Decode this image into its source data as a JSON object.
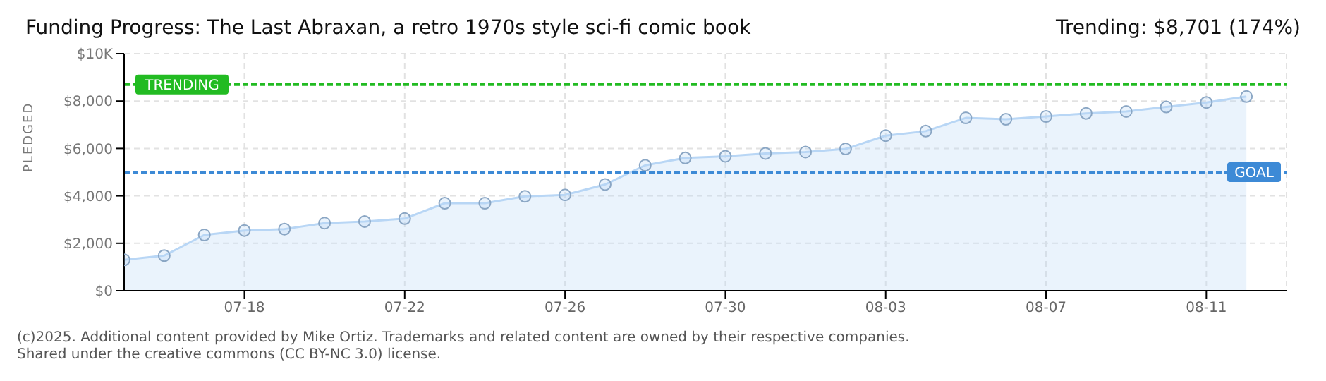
{
  "chart_data": {
    "type": "area",
    "title": "Funding Progress: The Last Abraxan, a retro 1970s style sci-fi comic book",
    "subtitle": "Trending: $8,701 (174%)",
    "ylabel": "PLEDGED",
    "x": [
      "--07-15",
      "--07-16",
      "--07-17",
      "--07-18",
      "--07-19",
      "--07-20",
      "--07-21",
      "--07-22",
      "--07-23",
      "--07-24",
      "--07-25",
      "--07-26",
      "--07-27",
      "--07-28",
      "--07-29",
      "--07-30",
      "--07-31",
      "--08-01",
      "--08-02",
      "--08-03",
      "--08-04",
      "--08-05",
      "--08-06",
      "--08-07",
      "--08-08",
      "--08-09",
      "--08-10",
      "--08-11",
      "--08-12"
    ],
    "series": [
      {
        "color": "#b8d6f5",
        "values": [
          1300,
          1480,
          2350,
          2540,
          2600,
          2850,
          2920,
          3040,
          3690,
          3690,
          3980,
          4040,
          4480,
          5290,
          5600,
          5670,
          5790,
          5850,
          5980,
          6540,
          6730,
          7290,
          7230,
          7350,
          7480,
          7560,
          7750,
          7940,
          8190
        ]
      }
    ],
    "xlim": [
      "--07-15",
      "--08-13"
    ],
    "xticks": [
      {
        "value": "--07-18",
        "label": "07-18"
      },
      {
        "value": "--07-22",
        "label": "07-22"
      },
      {
        "value": "--07-26",
        "label": "07-26"
      },
      {
        "value": "--07-30",
        "label": "07-30"
      },
      {
        "value": "--08-03",
        "label": "08-03"
      },
      {
        "value": "--08-07",
        "label": "08-07"
      },
      {
        "value": "--08-11",
        "label": "08-11"
      }
    ],
    "ylim": [
      0,
      10000
    ],
    "yticks": [
      {
        "value": 0,
        "label": "$0"
      },
      {
        "value": 2000,
        "label": "$2,000"
      },
      {
        "value": 4000,
        "label": "$4,000"
      },
      {
        "value": 6000,
        "label": "$6,000"
      },
      {
        "value": 8000,
        "label": "$8,000"
      },
      {
        "value": 10000,
        "label": "$10K"
      }
    ],
    "ref_lines": [
      {
        "axis": "y",
        "value": 8701,
        "label": "TRENDING",
        "color": "#22bb22",
        "line_style": "dashed"
      },
      {
        "axis": "y",
        "value": 5000,
        "label": "GOAL",
        "color": "#3d8ad6",
        "line_style": "dashed"
      }
    ],
    "grid": true,
    "marker": "circle",
    "annotations": [
      "(c)2025. Additional content provided by Mike Ortiz. Trademarks and related content are owned by their respective companies.",
      "Shared under the creative commons (CC BY-NC 3.0) license."
    ]
  }
}
